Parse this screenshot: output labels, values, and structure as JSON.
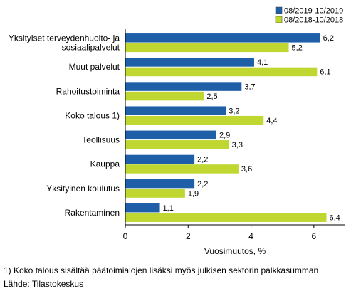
{
  "chart_data": {
    "type": "bar",
    "orientation": "horizontal",
    "categories": [
      [
        "Yksityiset terveydenhuolto- ja",
        "sosiaalipalvelut"
      ],
      [
        "Muut palvelut"
      ],
      [
        "Rahoitustoiminta"
      ],
      [
        "Koko talous 1)"
      ],
      [
        "Teollisuus"
      ],
      [
        "Kauppa"
      ],
      [
        "Yksityinen koulutus"
      ],
      [
        "Rakentaminen"
      ]
    ],
    "series": [
      {
        "name": "08/2019-10/2019",
        "color": "#1f5fa8",
        "values": [
          6.2,
          4.1,
          3.7,
          3.2,
          2.9,
          2.2,
          2.2,
          1.1
        ]
      },
      {
        "name": "08/2018-10/2018",
        "color": "#bfd730",
        "values": [
          5.2,
          6.1,
          2.5,
          4.4,
          3.3,
          3.6,
          1.9,
          6.4
        ]
      }
    ],
    "xlabel": "Vuosimuutos, %",
    "xlim": [
      0,
      7
    ],
    "xticks": [
      "0",
      "2",
      "4",
      "6"
    ],
    "legend": "top-right",
    "grid": false
  },
  "footnote": "1) Koko talous sisältää päätoimialojen lisäksi myös julkisen sektorin palkkasumman",
  "source": "Lähde: Tilastokeskus"
}
